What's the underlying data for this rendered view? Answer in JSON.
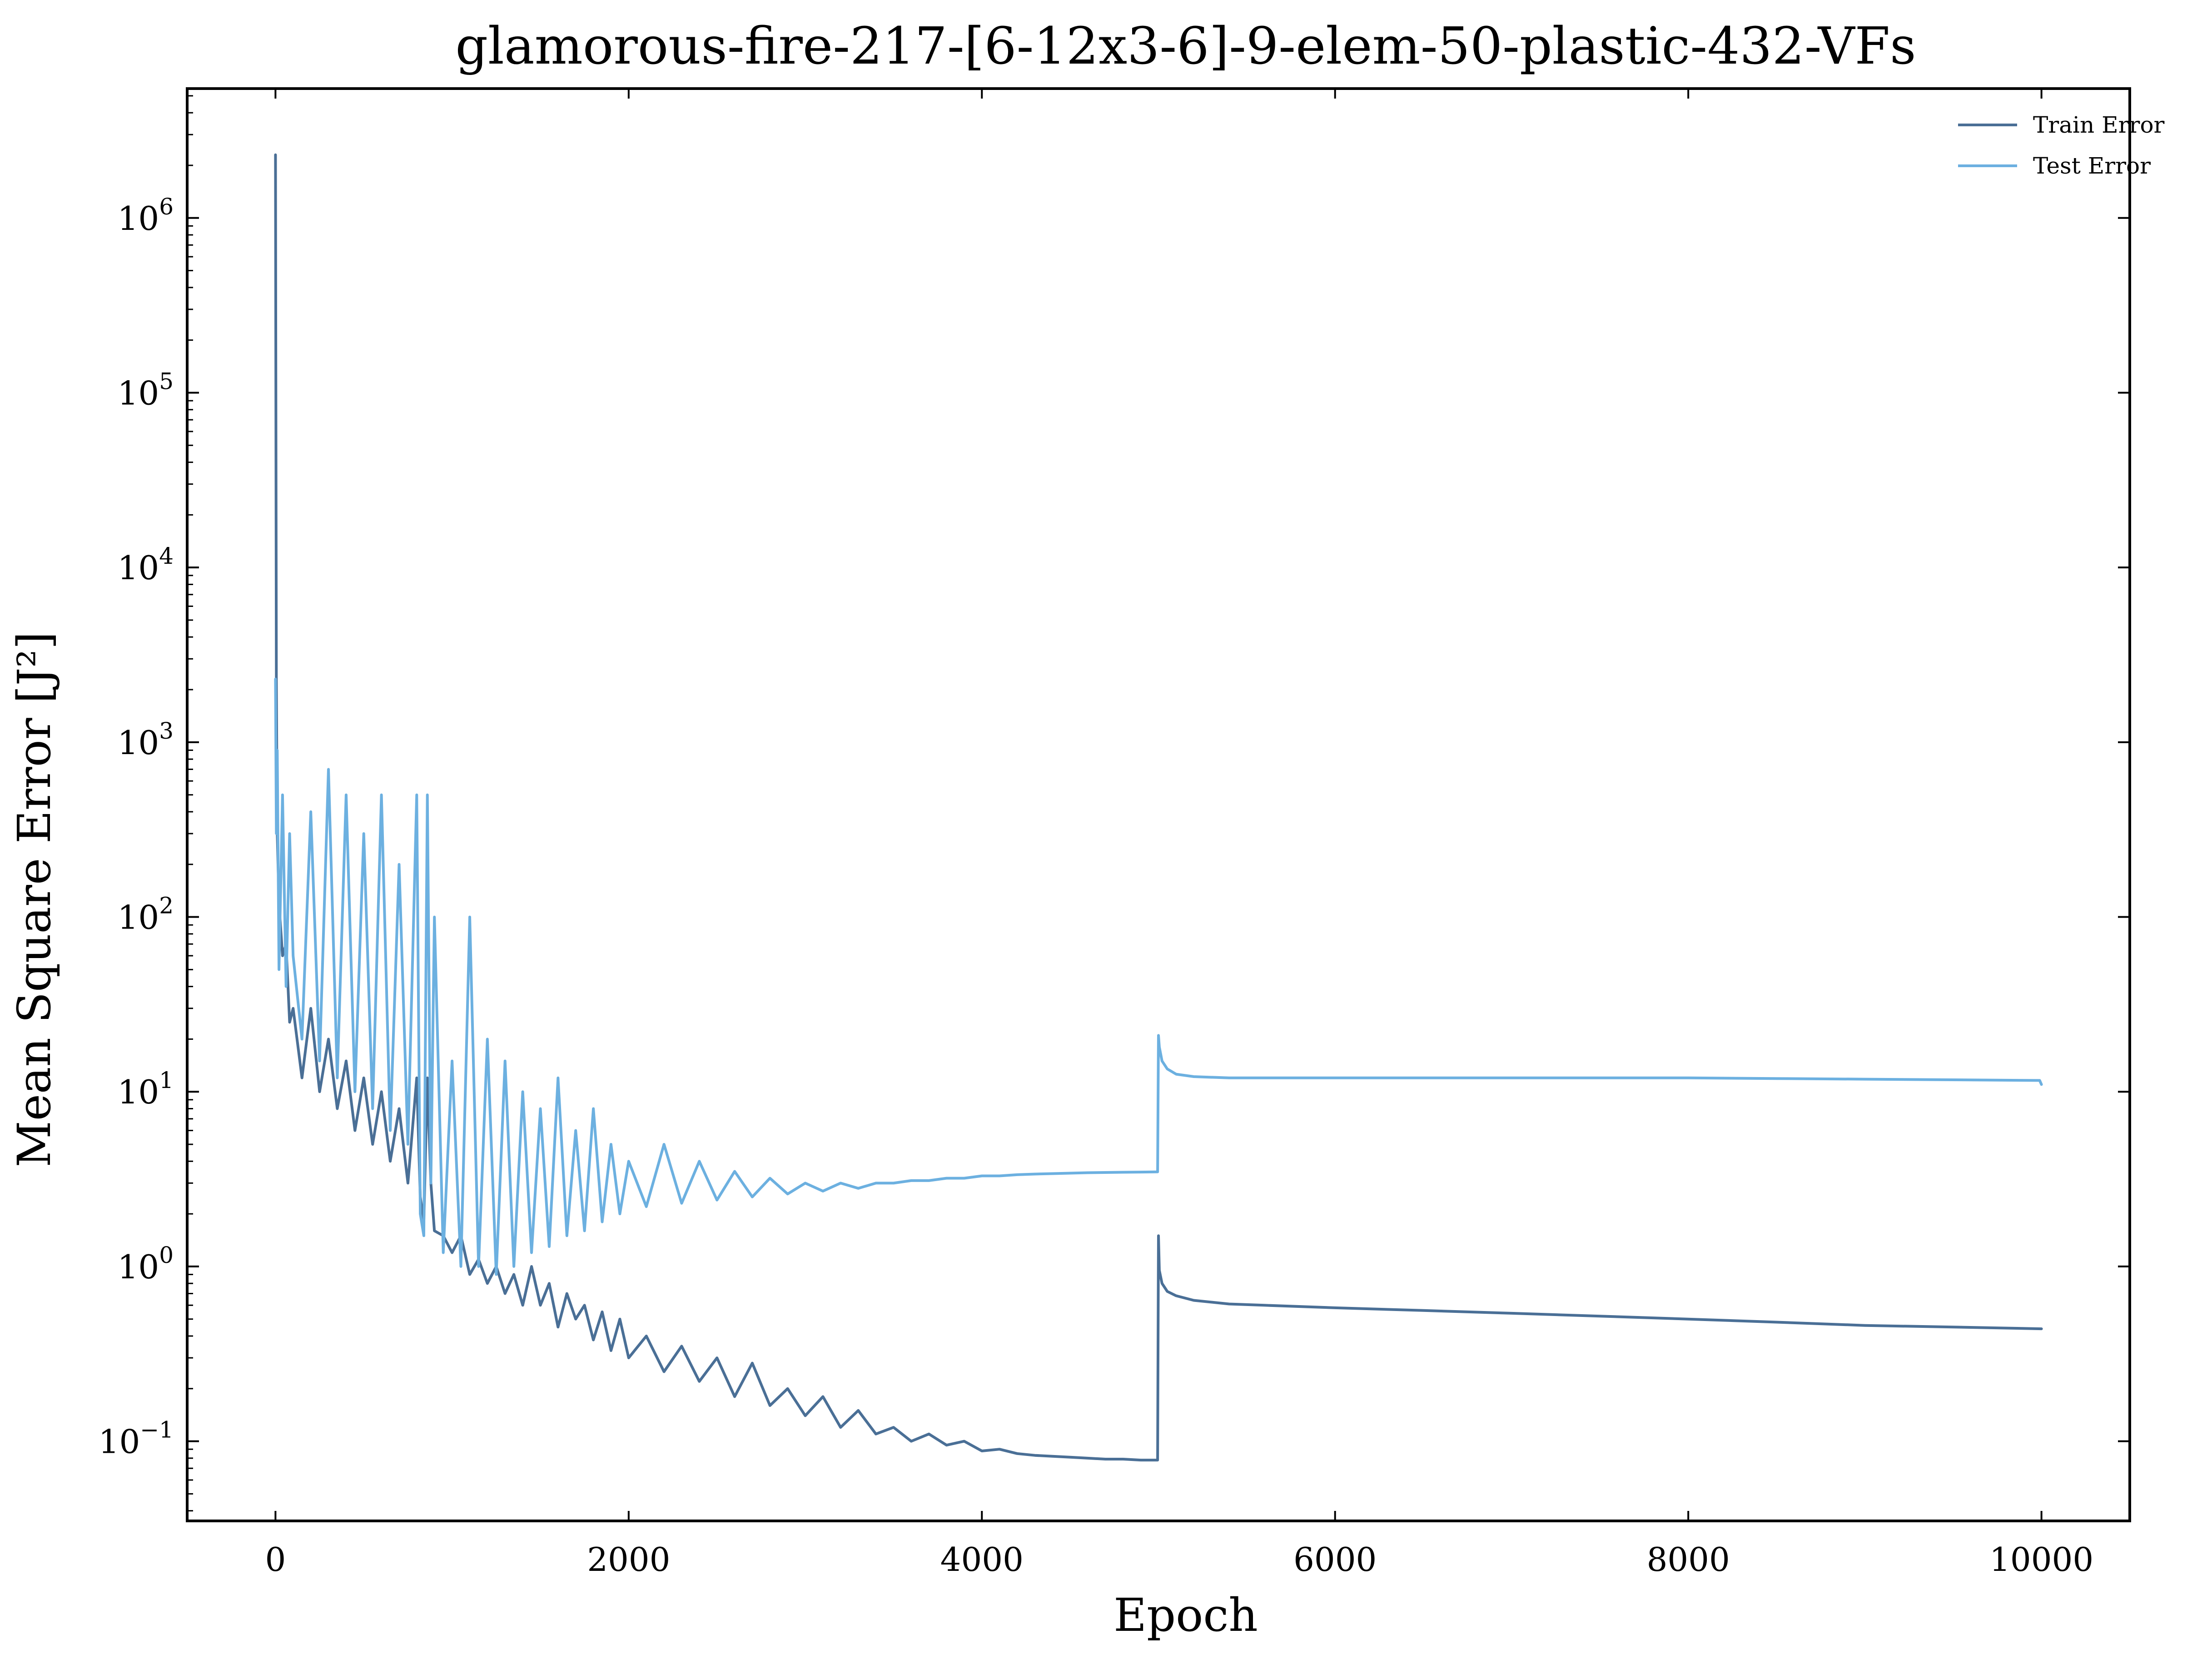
{
  "chart_data": {
    "type": "line",
    "title": "glamorous-fire-217-[6-12x3-6]-9-elem-50-plastic-432-VFs",
    "xlabel": "Epoch",
    "ylabel": "Mean Square Error [J²]",
    "xlim": [
      -500,
      10500
    ],
    "ylim": [
      0.035,
      5500000
    ],
    "yscale": "log",
    "grid": false,
    "legend_position": "top-right",
    "x_ticks": [
      {
        "value": 0,
        "label": "0"
      },
      {
        "value": 2000,
        "label": "2000"
      },
      {
        "value": 4000,
        "label": "4000"
      },
      {
        "value": 6000,
        "label": "6000"
      },
      {
        "value": 8000,
        "label": "8000"
      },
      {
        "value": 10000,
        "label": "10000"
      }
    ],
    "y_ticks": [
      {
        "value": 0.1,
        "base": "10",
        "exp": "−1"
      },
      {
        "value": 1,
        "base": "10",
        "exp": "0"
      },
      {
        "value": 10,
        "base": "10",
        "exp": "1"
      },
      {
        "value": 100,
        "base": "10",
        "exp": "2"
      },
      {
        "value": 1000,
        "base": "10",
        "exp": "3"
      },
      {
        "value": 10000,
        "base": "10",
        "exp": "4"
      },
      {
        "value": 100000,
        "base": "10",
        "exp": "5"
      },
      {
        "value": 1000000,
        "base": "10",
        "exp": "6"
      }
    ],
    "series": [
      {
        "name": "Train Error",
        "color": "#4a6f96",
        "x": [
          0,
          5,
          10,
          20,
          40,
          60,
          80,
          100,
          150,
          200,
          250,
          300,
          350,
          400,
          450,
          500,
          550,
          600,
          650,
          700,
          750,
          800,
          820,
          840,
          860,
          880,
          900,
          950,
          1000,
          1050,
          1100,
          1150,
          1200,
          1250,
          1300,
          1350,
          1400,
          1450,
          1500,
          1550,
          1600,
          1650,
          1700,
          1750,
          1800,
          1850,
          1900,
          1950,
          2000,
          2100,
          2200,
          2300,
          2400,
          2500,
          2600,
          2700,
          2800,
          2900,
          3000,
          3100,
          3200,
          3300,
          3400,
          3500,
          3600,
          3700,
          3800,
          3900,
          4000,
          4100,
          4200,
          4300,
          4400,
          4500,
          4600,
          4700,
          4800,
          4900,
          4995,
          5000,
          5005,
          5020,
          5050,
          5100,
          5200,
          5400,
          5600,
          6000,
          6500,
          7000,
          7500,
          8000,
          8500,
          9000,
          9500,
          10000
        ],
        "values": [
          2300000,
          2300,
          300,
          120,
          60,
          70,
          25,
          30,
          12,
          30,
          10,
          20,
          8,
          15,
          6,
          12,
          5,
          10,
          4,
          8,
          3,
          12,
          2.5,
          1.8,
          12,
          3,
          1.6,
          1.5,
          1.2,
          1.5,
          0.9,
          1.1,
          0.8,
          1.0,
          0.7,
          0.9,
          0.6,
          1.0,
          0.6,
          0.8,
          0.45,
          0.7,
          0.5,
          0.6,
          0.38,
          0.55,
          0.33,
          0.5,
          0.3,
          0.4,
          0.25,
          0.35,
          0.22,
          0.3,
          0.18,
          0.28,
          0.16,
          0.2,
          0.14,
          0.18,
          0.12,
          0.15,
          0.11,
          0.12,
          0.1,
          0.11,
          0.095,
          0.1,
          0.088,
          0.09,
          0.085,
          0.083,
          0.082,
          0.081,
          0.08,
          0.079,
          0.079,
          0.078,
          0.078,
          1.5,
          0.95,
          0.8,
          0.72,
          0.68,
          0.64,
          0.61,
          0.6,
          0.58,
          0.56,
          0.54,
          0.52,
          0.5,
          0.48,
          0.46,
          0.45,
          0.44
        ]
      },
      {
        "name": "Test Error",
        "color": "#6cb0e0",
        "x": [
          0,
          5,
          10,
          20,
          40,
          60,
          80,
          100,
          150,
          200,
          250,
          300,
          350,
          400,
          450,
          500,
          550,
          600,
          650,
          700,
          750,
          800,
          820,
          840,
          860,
          880,
          900,
          950,
          1000,
          1050,
          1100,
          1150,
          1200,
          1250,
          1300,
          1350,
          1400,
          1450,
          1500,
          1550,
          1600,
          1650,
          1700,
          1750,
          1800,
          1850,
          1900,
          1950,
          2000,
          2100,
          2200,
          2300,
          2400,
          2500,
          2600,
          2700,
          2800,
          2900,
          3000,
          3100,
          3200,
          3300,
          3400,
          3500,
          3600,
          3700,
          3800,
          3900,
          4000,
          4100,
          4200,
          4300,
          4400,
          4500,
          4600,
          4700,
          4800,
          4900,
          4995,
          5000,
          5005,
          5020,
          5050,
          5100,
          5200,
          5400,
          5600,
          6000,
          6500,
          7000,
          7500,
          8000,
          8500,
          9000,
          9500,
          9990,
          10000
        ],
        "values": [
          2300,
          300,
          900,
          50,
          500,
          40,
          300,
          60,
          20,
          400,
          15,
          700,
          12,
          500,
          10,
          300,
          8,
          500,
          6,
          200,
          5,
          500,
          2,
          1.5,
          500,
          3,
          100,
          1.2,
          15,
          1.0,
          100,
          1.0,
          20,
          0.9,
          15,
          1.0,
          10,
          1.2,
          8,
          1.3,
          12,
          1.5,
          6,
          1.6,
          8,
          1.8,
          5,
          2.0,
          4,
          2.2,
          5,
          2.3,
          4,
          2.4,
          3.5,
          2.5,
          3.2,
          2.6,
          3.0,
          2.7,
          3.0,
          2.8,
          3.0,
          3.0,
          3.1,
          3.1,
          3.2,
          3.2,
          3.3,
          3.3,
          3.35,
          3.38,
          3.4,
          3.42,
          3.44,
          3.45,
          3.46,
          3.47,
          3.48,
          21,
          18,
          15,
          13.5,
          12.6,
          12.2,
          12.0,
          12.0,
          12.0,
          12.0,
          12.0,
          12.0,
          12.0,
          11.9,
          11.8,
          11.7,
          11.6,
          11.0
        ]
      }
    ]
  }
}
